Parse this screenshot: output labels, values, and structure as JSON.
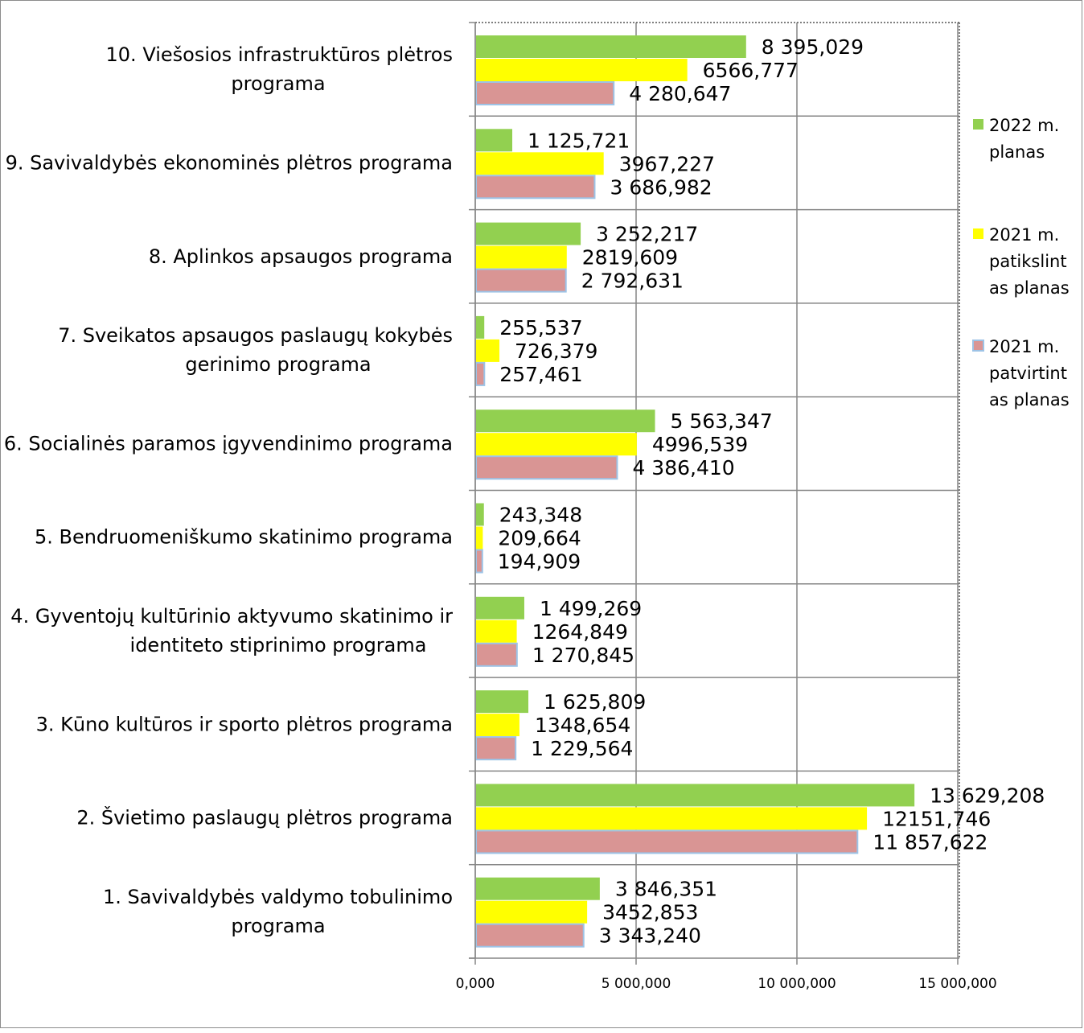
{
  "chart_data": {
    "type": "bar",
    "orientation": "horizontal",
    "categories": [
      "10. Viešosios infrastruktūros plėtros programa",
      "9. Savivaldybės ekonominės plėtros programa",
      "8. Aplinkos apsaugos programa",
      "7. Sveikatos apsaugos paslaugų kokybės gerinimo programa",
      "6. Socialinės paramos įgyvendinimo programa",
      "5. Bendruomeniškumo skatinimo programa",
      "4. Gyventojų kultūrinio aktyvumo skatinimo ir identiteto stiprinimo programa",
      "3. Kūno kultūros ir sporto plėtros programa",
      "2. Švietimo paslaugų plėtros programa",
      "1. Savivaldybės valdymo tobulinimo programa"
    ],
    "category_lines": [
      [
        "10. Viešosios infrastruktūros plėtros",
        "programa"
      ],
      [
        "9. Savivaldybės ekonominės plėtros programa"
      ],
      [
        "8. Aplinkos apsaugos programa"
      ],
      [
        "7. Sveikatos apsaugos paslaugų kokybės",
        "gerinimo programa"
      ],
      [
        "6. Socialinės paramos įgyvendinimo programa"
      ],
      [
        "5. Bendruomeniškumo skatinimo programa"
      ],
      [
        "4. Gyventojų kultūrinio aktyvumo skatinimo ir",
        "identiteto stiprinimo programa"
      ],
      [
        "3. Kūno kultūros ir sporto plėtros programa"
      ],
      [
        "2. Švietimo paslaugų plėtros programa"
      ],
      [
        "1. Savivaldybės valdymo tobulinimo",
        "programa"
      ]
    ],
    "series": [
      {
        "name": "2022 m. planas",
        "legend_lines": [
          "2022 m.",
          "planas"
        ],
        "color": "#92d050",
        "values": [
          8395029,
          1125721,
          3252217,
          255537,
          5563347,
          243348,
          1499269,
          1625809,
          13629208,
          3846351
        ],
        "labels": [
          "8 395,029",
          "1 125,721",
          "3 252,217",
          "255,537",
          "5 563,347",
          "243,348",
          "1 499,269",
          "1 625,809",
          "13 629,208",
          "3 846,351"
        ]
      },
      {
        "name": "2021 m. patikslintas planas",
        "legend_lines": [
          "2021 m.",
          "patikslint",
          "as planas"
        ],
        "color": "#ffff00",
        "values": [
          6566777,
          3967227,
          2819609,
          726379,
          4996539,
          209664,
          1264849,
          1348654,
          12151746,
          3452853
        ],
        "labels": [
          "6566,777",
          "3967,227",
          "2819,609",
          "726,379",
          "4996,539",
          "209,664",
          "1264,849",
          "1348,654",
          "12151,746",
          "3452,853"
        ]
      },
      {
        "name": "2021 m. patvirtintas planas",
        "legend_lines": [
          "2021 m.",
          "patvirtint",
          "as planas"
        ],
        "color": "#d99594",
        "values": [
          4280647,
          3686982,
          2792631,
          257461,
          4386410,
          194909,
          1270845,
          1229564,
          11857622,
          3343240
        ],
        "labels": [
          "4 280,647",
          "3 686,982",
          "2 792,631",
          "257,461",
          "4 386,410",
          "194,909",
          "1 270,845",
          "1 229,564",
          "11 857,622",
          "3 343,240"
        ]
      }
    ],
    "x_ticks": [
      0,
      5000000,
      10000000,
      15000000
    ],
    "x_tick_labels": [
      "0,000",
      "5 000,000",
      "10 000,000",
      "15 000,000"
    ],
    "xlim": [
      0,
      15000000
    ],
    "grid": true,
    "legend_position": "right"
  }
}
